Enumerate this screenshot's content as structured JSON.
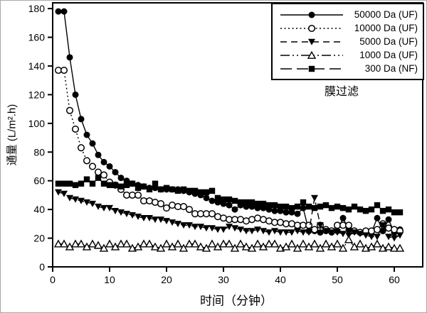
{
  "figure": {
    "background": "#ffffff",
    "foreground": "#000000"
  },
  "chart_data": {
    "type": "line",
    "title": "",
    "xlabel": "时间（分钟）",
    "ylabel": "通量 (L/m².h)",
    "annotation": "膜过滤",
    "xlim": [
      0,
      65
    ],
    "ylim": [
      0,
      184
    ],
    "x_ticks": [
      0,
      10,
      20,
      30,
      40,
      50,
      60
    ],
    "y_ticks": [
      0,
      20,
      40,
      60,
      80,
      100,
      120,
      140,
      160,
      180
    ],
    "grid": false,
    "legend_position": "top-right",
    "x": [
      1,
      2,
      3,
      4,
      5,
      6,
      7,
      8,
      9,
      10,
      11,
      12,
      13,
      14,
      15,
      16,
      17,
      18,
      19,
      20,
      21,
      22,
      23,
      24,
      25,
      26,
      27,
      28,
      29,
      30,
      31,
      32,
      33,
      34,
      35,
      36,
      37,
      38,
      39,
      40,
      41,
      42,
      43,
      44,
      45,
      46,
      47,
      48,
      49,
      50,
      51,
      52,
      53,
      54,
      55,
      56,
      57,
      58,
      59,
      60,
      61
    ],
    "series": [
      {
        "name": "50000 Da (UF)",
        "marker": "filled-circle",
        "line_style": "solid",
        "values": [
          178,
          178,
          146,
          120,
          103,
          92,
          86,
          78,
          73,
          70,
          66,
          62,
          60,
          58,
          57,
          56,
          55,
          55,
          54,
          54,
          54,
          54,
          53,
          52,
          51,
          50,
          48,
          46,
          45,
          44,
          43,
          40,
          43,
          42,
          42,
          41,
          41,
          40,
          39,
          39,
          38,
          38,
          37,
          41,
          25,
          25,
          24,
          25,
          24,
          25,
          34,
          26,
          25,
          24,
          25,
          24,
          34,
          25,
          33,
          24,
          26
        ]
      },
      {
        "name": "10000 Da (UF)",
        "marker": "open-circle",
        "line_style": "dotted",
        "values": [
          137,
          137,
          109,
          96,
          83,
          74,
          70,
          66,
          64,
          59,
          57,
          54,
          50,
          50,
          50,
          46,
          46,
          45,
          44,
          41,
          43,
          42,
          42,
          40,
          37,
          37,
          37,
          37,
          35,
          34,
          33,
          33,
          33,
          32,
          33,
          34,
          33,
          32,
          31,
          31,
          30,
          30,
          29,
          29,
          29,
          26,
          29,
          26,
          25,
          29,
          29,
          29,
          25,
          24,
          25,
          25,
          26,
          30,
          27,
          26,
          25
        ]
      },
      {
        "name": "5000 Da (UF)",
        "marker": "filled-triangle-down",
        "line_style": "dashed",
        "values": [
          52,
          51,
          48,
          47,
          46,
          45,
          44,
          42,
          41,
          41,
          39,
          38,
          37,
          36,
          35,
          34,
          34,
          33,
          33,
          32,
          31,
          30,
          29,
          29,
          28,
          28,
          27,
          27,
          26,
          26,
          28,
          27,
          26,
          25,
          25,
          26,
          25,
          24,
          25,
          24,
          24,
          24,
          25,
          24,
          24,
          48,
          29,
          25,
          24,
          24,
          23,
          22,
          24,
          23,
          22,
          21,
          21,
          29,
          21,
          20,
          22
        ]
      },
      {
        "name": "1000 Da (UF)",
        "marker": "open-triangle-up",
        "line_style": "dash-dot-dot",
        "values": [
          16,
          16,
          14,
          16,
          16,
          14,
          16,
          15,
          13,
          16,
          14,
          16,
          16,
          13,
          14,
          16,
          16,
          14,
          13,
          16,
          14,
          16,
          13,
          16,
          16,
          14,
          13,
          16,
          14,
          16,
          16,
          13,
          16,
          14,
          13,
          16,
          14,
          16,
          16,
          13,
          14,
          16,
          13,
          16,
          14,
          16,
          13,
          16,
          14,
          16,
          13,
          19,
          14,
          16,
          13,
          14,
          16,
          13,
          14,
          13,
          13
        ]
      },
      {
        "name": "300 Da (NF)",
        "marker": "filled-square",
        "line_style": "long-dash",
        "values": [
          58,
          58,
          58,
          57,
          58,
          61,
          58,
          62,
          58,
          57,
          57,
          56,
          57,
          58,
          55,
          56,
          54,
          58,
          54,
          55,
          54,
          53,
          54,
          53,
          53,
          52,
          52,
          53,
          48,
          47,
          47,
          46,
          45,
          45,
          45,
          44,
          44,
          43,
          43,
          42,
          42,
          41,
          42,
          45,
          42,
          41,
          42,
          43,
          41,
          42,
          41,
          40,
          42,
          40,
          39,
          40,
          43,
          39,
          40,
          38,
          38
        ]
      }
    ]
  }
}
